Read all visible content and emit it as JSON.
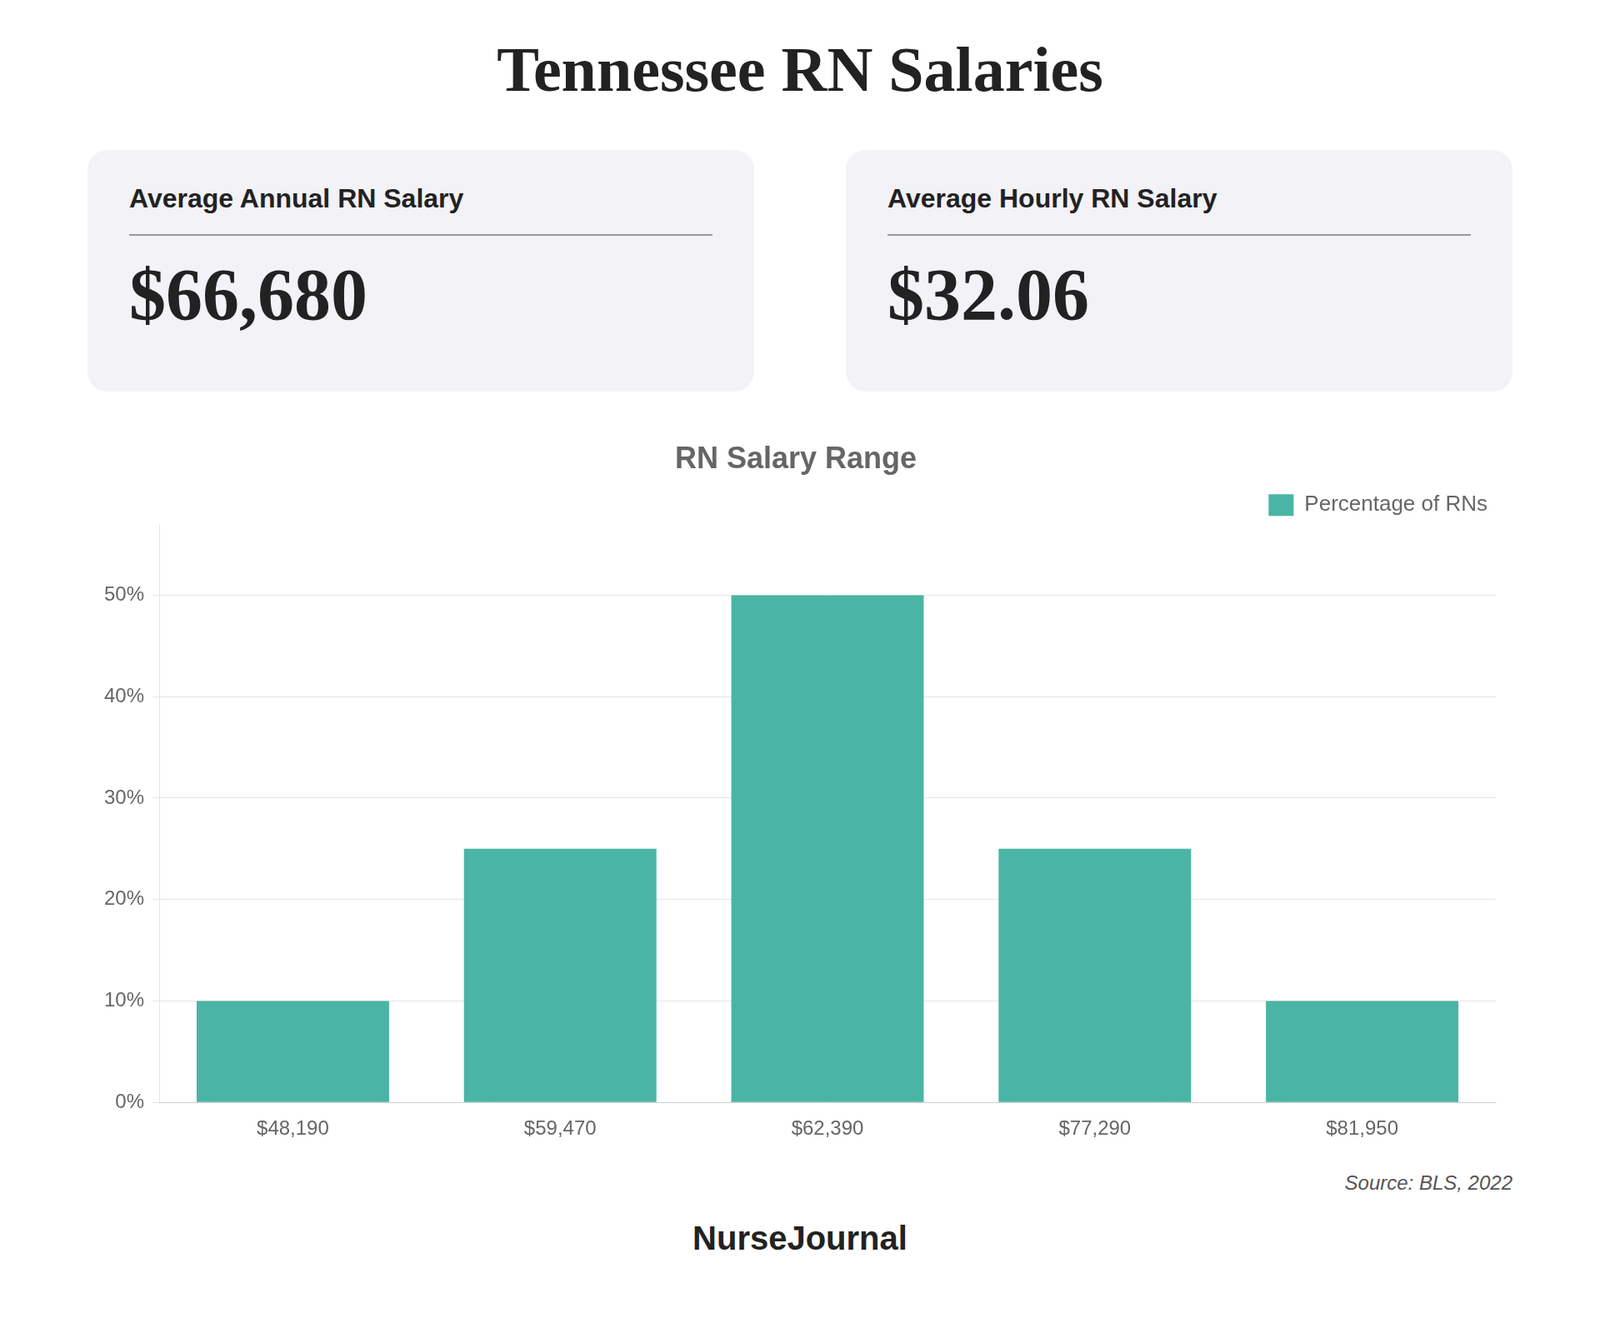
{
  "chart_data": {
    "type": "bar",
    "title": "Tennessee RN Salaries",
    "subtitle": "RN Salary Range",
    "annotations": [
      "Average Annual RN Salary",
      "$66,680",
      "Average Hourly RN Salary",
      "$32.06",
      "Source: BLS, 2022",
      "NurseJournal"
    ],
    "categories": [
      "$48,190",
      "$59,470",
      "$62,390",
      "$77,290",
      "$81,950"
    ],
    "series": [
      {
        "name": "Percentage of RNs",
        "color": "#4ab5a5",
        "values": [
          10,
          25,
          50,
          25,
          10
        ]
      }
    ],
    "ylim": [
      0,
      57
    ],
    "yticks": [
      {
        "value": 0,
        "label": "0%"
      },
      {
        "value": 10,
        "label": "10%"
      },
      {
        "value": 20,
        "label": "20%"
      },
      {
        "value": 30,
        "label": "30%"
      },
      {
        "value": 40,
        "label": "40%"
      },
      {
        "value": 50,
        "label": "50%"
      }
    ],
    "grid": true,
    "legend": "upper right"
  }
}
